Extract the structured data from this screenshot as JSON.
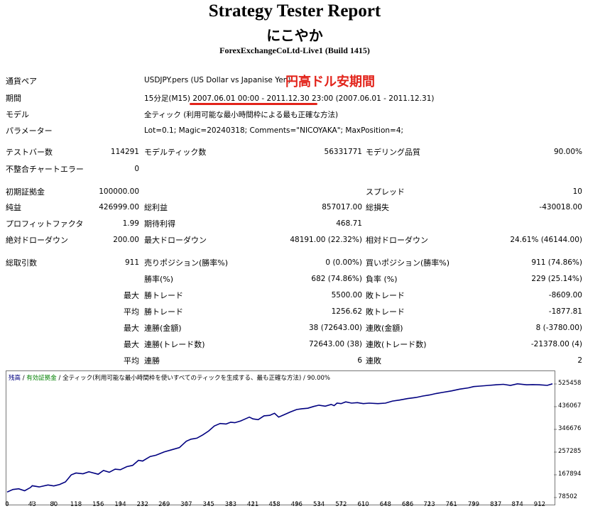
{
  "header": {
    "title": "Strategy Tester Report",
    "ea_name": "にこやか",
    "server": "ForexExchangeCoLtd-Live1 (Build 1415)"
  },
  "info": {
    "symbol_label": "通貨ペア",
    "symbol_value": "USDJPY.pers (US Dollar vs Japanise Yen)",
    "annotation": "円高ドル安期間",
    "period_label": "期間",
    "period_tf": "15分足(M15)",
    "period_range": "2007.06.01 00:00 - 2011.12.30 23:00",
    "period_data": "(2007.06.01 - 2011.12.31)",
    "model_label": "モデル",
    "model_value": "全ティック (利用可能な最小時間枠による最も正確な方法)",
    "params_label": "パラメーター",
    "params_value": "Lot=0.1; Magic=20240318; Comments=\"NICOYAKA\"; MaxPosition=4;"
  },
  "stats": {
    "bars_label": "テストバー数",
    "bars_value": "114291",
    "ticks_label": "モデルティック数",
    "ticks_value": "56331771",
    "quality_label": "モデリング品質",
    "quality_value": "90.00%",
    "mismatch_label": "不整合チャートエラー",
    "mismatch_value": "0",
    "deposit_label": "初期証拠金",
    "deposit_value": "100000.00",
    "spread_label": "スプレッド",
    "spread_value": "10",
    "net_label": "純益",
    "net_value": "426999.00",
    "gross_profit_label": "総利益",
    "gross_profit_value": "857017.00",
    "gross_loss_label": "総損失",
    "gross_loss_value": "-430018.00",
    "pf_label": "プロフィットファクタ",
    "pf_value": "1.99",
    "expected_label": "期待利得",
    "expected_value": "468.71",
    "abs_dd_label": "絶対ドローダウン",
    "abs_dd_value": "200.00",
    "max_dd_label": "最大ドローダウン",
    "max_dd_value": "48191.00 (22.32%)",
    "rel_dd_label": "相対ドローダウン",
    "rel_dd_value": "24.61% (46144.00)",
    "trades_label": "総取引数",
    "trades_value": "911",
    "short_label": "売りポジション(勝率%)",
    "short_value": "0 (0.00%)",
    "long_label": "買いポジション(勝率%)",
    "long_value": "911 (74.86%)",
    "win_label": "勝率(%)",
    "win_value": "682 (74.86%)",
    "loss_label": "負率 (%)",
    "loss_value": "229 (25.14%)",
    "max_word": "最大",
    "avg_word": "平均",
    "max_win_label": "勝トレード",
    "max_win_value": "5500.00",
    "max_loss_label": "敗トレード",
    "max_loss_value": "-8609.00",
    "avg_win_label": "勝トレード",
    "avg_win_value": "1256.62",
    "avg_loss_label": "敗トレード",
    "avg_loss_value": "-1877.81",
    "cons_wins_amt_label": "連勝(金額)",
    "cons_wins_amt_value": "38 (72643.00)",
    "cons_loss_amt_label": "連敗(金額)",
    "cons_loss_amt_value": "8 (-3780.00)",
    "cons_profit_label": "連勝(トレード数)",
    "cons_profit_value": "72643.00 (38)",
    "cons_loss_trades_label": "連敗(トレード数)",
    "cons_loss_trades_value": "-21378.00 (4)",
    "avg_cons_win_label": "連勝",
    "avg_cons_win_value": "6",
    "avg_cons_loss_label": "連敗",
    "avg_cons_loss_value": "2"
  },
  "chart_legend": {
    "balance": "残高",
    "sep1": " / ",
    "equity": "有効証拠金",
    "sep2": " / ",
    "model": "全ティック(利用可能な最小時間枠を使いすべてのティックを生成する、最も正確な方法)",
    "sep3": " / ",
    "quality": "90.00%",
    "balance_color": "#000080",
    "equity_color": "#008000"
  },
  "chart_data": {
    "type": "line",
    "ylim": [
      78502,
      525458
    ],
    "y_ticks": [
      "525458",
      "436067",
      "346676",
      "257285",
      "167894",
      "78502"
    ],
    "x_ticks": [
      "0",
      "43",
      "80",
      "118",
      "156",
      "194",
      "232",
      "269",
      "307",
      "345",
      "383",
      "421",
      "458",
      "496",
      "534",
      "572",
      "610",
      "648",
      "686",
      "723",
      "761",
      "799",
      "837",
      "874",
      "912"
    ],
    "x": [
      0,
      10,
      20,
      30,
      40,
      43,
      55,
      70,
      80,
      90,
      100,
      110,
      118,
      130,
      140,
      156,
      165,
      175,
      185,
      194,
      205,
      215,
      225,
      232,
      245,
      255,
      269,
      280,
      295,
      307,
      315,
      325,
      335,
      345,
      355,
      365,
      375,
      383,
      390,
      400,
      405,
      415,
      421,
      430,
      440,
      450,
      458,
      465,
      475,
      485,
      496,
      505,
      515,
      525,
      534,
      545,
      555,
      560,
      565,
      572,
      580,
      590,
      600,
      610,
      620,
      635,
      648,
      660,
      672,
      686,
      700,
      712,
      723,
      735,
      745,
      761,
      775,
      790,
      799,
      810,
      825,
      837,
      850,
      862,
      874,
      890,
      900,
      912,
      925,
      934
    ],
    "series": [
      {
        "values": [
          100000,
          110000,
          113000,
          105000,
          118000,
          125000,
          120000,
          128000,
          124000,
          130000,
          140000,
          168000,
          175000,
          172000,
          180000,
          170000,
          185000,
          178000,
          190000,
          188000,
          200000,
          205000,
          225000,
          222000,
          240000,
          245000,
          258000,
          265000,
          275000,
          300000,
          308000,
          312000,
          325000,
          340000,
          360000,
          370000,
          368000,
          375000,
          373000,
          380000,
          385000,
          395000,
          388000,
          385000,
          400000,
          402000,
          410000,
          395000,
          405000,
          415000,
          425000,
          428000,
          430000,
          437000,
          442000,
          438000,
          445000,
          440000,
          450000,
          448000,
          455000,
          450000,
          452000,
          448000,
          450000,
          448000,
          450000,
          458000,
          462000,
          468000,
          472000,
          478000,
          482000,
          488000,
          492000,
          498000,
          505000,
          510000,
          515000,
          517000,
          520000,
          522000,
          524000,
          520000,
          526000,
          522000,
          523000,
          522000,
          520000,
          526000
        ]
      }
    ]
  }
}
